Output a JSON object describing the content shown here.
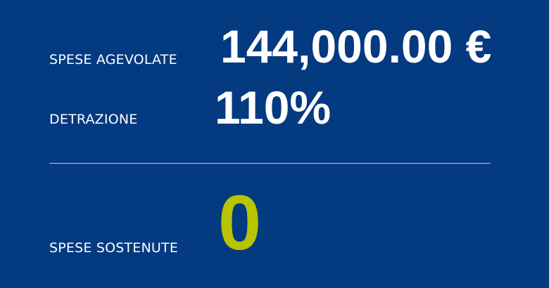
{
  "panel": {
    "spese_agevolate": {
      "label": "SPESE AGEVOLATE",
      "value": "144,000.00 €"
    },
    "detrazione": {
      "label": "DETRAZIONE",
      "value": "110%"
    },
    "spese_sostenute": {
      "label": "SPESE SOSTENUTE",
      "value": "0"
    }
  },
  "colors": {
    "background": "#033a80",
    "text": "#ffffff",
    "accent": "#b8c400",
    "divider": "#b9c7da"
  }
}
